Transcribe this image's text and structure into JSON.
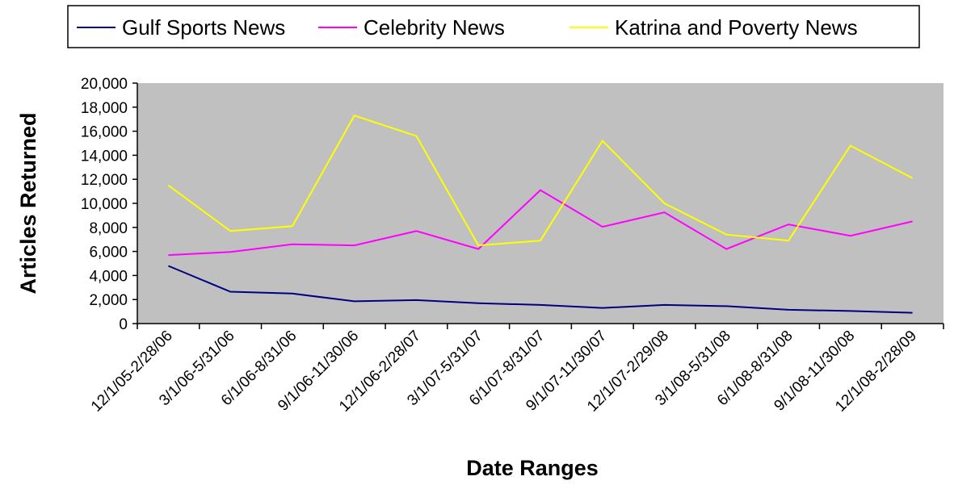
{
  "chart_data": {
    "type": "line",
    "title": "",
    "xlabel": "Date Ranges",
    "ylabel": "Articles Returned",
    "ylim": [
      0,
      20000
    ],
    "yticks": [
      0,
      2000,
      4000,
      6000,
      8000,
      10000,
      12000,
      14000,
      16000,
      18000,
      20000
    ],
    "ytick_labels": [
      "0",
      "2,000",
      "4,000",
      "6,000",
      "8,000",
      "10,000",
      "12,000",
      "14,000",
      "16,000",
      "18,000",
      "20,000"
    ],
    "categories": [
      "12/1/05-2/28/06",
      "3/1/06-5/31/06",
      "6/1/06-8/31/06",
      "9/1/06-11/30/06",
      "12/1/06-2/28/07",
      "3/1/07-5/31/07",
      "6/1/07-8/31/07",
      "9/1/07-11/30/07",
      "12/1/07-2/29/08",
      "3/1/08-5/31/08",
      "6/1/08-8/31/08",
      "9/1/08-11/30/08",
      "12/1/08-2/28/09"
    ],
    "series": [
      {
        "name": "Gulf Sports News",
        "color": "#000080",
        "values": [
          4800,
          2650,
          2500,
          1850,
          1950,
          1700,
          1550,
          1300,
          1550,
          1450,
          1150,
          1050,
          900
        ]
      },
      {
        "name": "Celebrity News",
        "color": "#ff00ff",
        "values": [
          5700,
          5950,
          6600,
          6500,
          7700,
          6200,
          11100,
          8050,
          9250,
          6200,
          8250,
          7300,
          8500
        ]
      },
      {
        "name": "Katrina and Poverty News",
        "color": "#ffff00",
        "values": [
          11500,
          7700,
          8100,
          17300,
          15600,
          6500,
          6900,
          15200,
          10000,
          7400,
          6900,
          14800,
          12100
        ]
      }
    ],
    "grid": false,
    "legend_position": "top",
    "plot_background": "#c0c0c0"
  }
}
